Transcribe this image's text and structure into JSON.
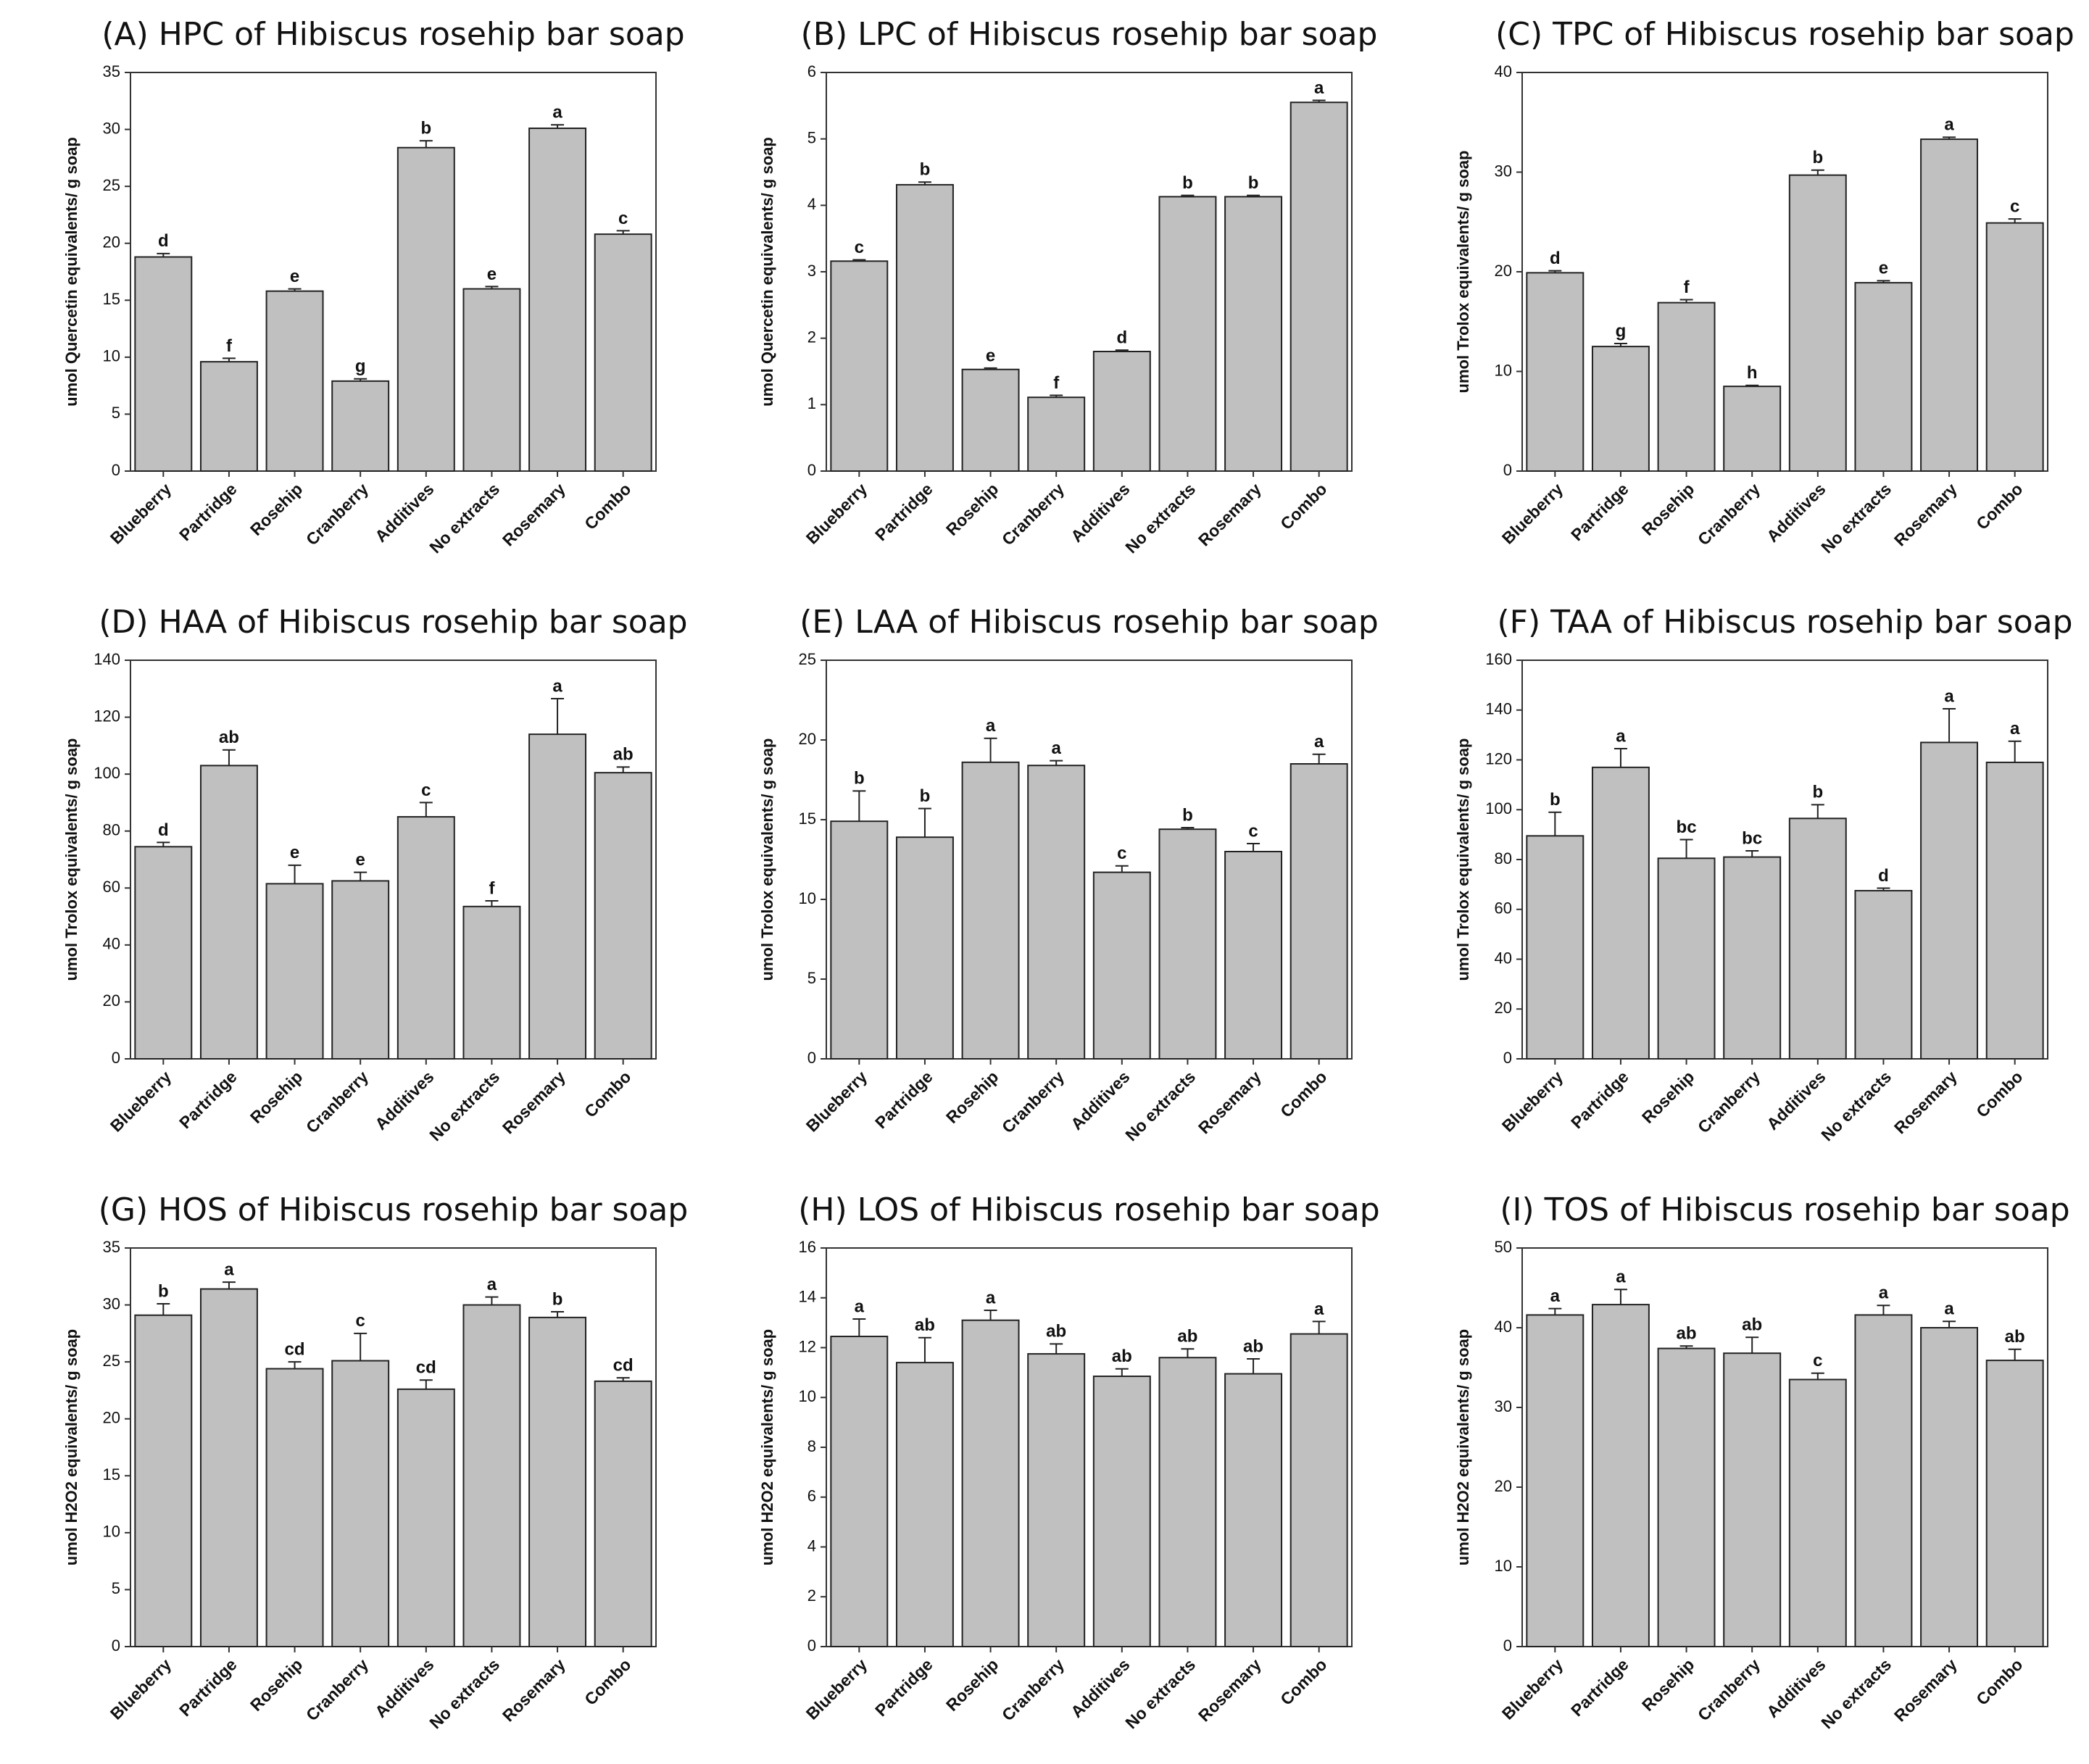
{
  "chart_data": [
    {
      "type": "bar",
      "title": "(A) HPC of Hibiscus rosehip bar soap",
      "ylabel": "umol Quercetin equivalents/ g soap",
      "categories": [
        "Blueberry",
        "Partridge",
        "Rosehip",
        "Cranberry",
        "Additives",
        "No extracts",
        "Rosemary",
        "Combo"
      ],
      "values": [
        18.8,
        9.6,
        15.8,
        7.9,
        28.4,
        16.0,
        30.1,
        20.8
      ],
      "errors": [
        0.3,
        0.3,
        0.2,
        0.2,
        0.6,
        0.2,
        0.3,
        0.3
      ],
      "annotations": [
        "d",
        "f",
        "e",
        "g",
        "b",
        "e",
        "a",
        "c"
      ],
      "color": "#c0c0c0",
      "ylim": [
        0,
        35
      ],
      "yticks": [
        0,
        5,
        10,
        15,
        20,
        25,
        30,
        35
      ]
    },
    {
      "type": "bar",
      "title": "(B) LPC of Hibiscus rosehip bar soap",
      "ylabel": "umol Quercetin equivalents/ g soap",
      "categories": [
        "Blueberry",
        "Partridge",
        "Rosehip",
        "Cranberry",
        "Additives",
        "No extracts",
        "Rosemary",
        "Combo"
      ],
      "values": [
        3.16,
        4.31,
        1.53,
        1.11,
        1.8,
        4.13,
        4.13,
        5.55
      ],
      "errors": [
        0.02,
        0.04,
        0.02,
        0.03,
        0.02,
        0.02,
        0.02,
        0.03
      ],
      "annotations": [
        "c",
        "b",
        "e",
        "f",
        "d",
        "b",
        "b",
        "a"
      ],
      "color": "#c0c0c0",
      "ylim": [
        0,
        6
      ],
      "yticks": [
        0,
        1,
        2,
        3,
        4,
        5,
        6
      ]
    },
    {
      "type": "bar",
      "title": "(C) TPC of Hibiscus rosehip bar soap",
      "ylabel": "umol Trolox equivalents/ g soap",
      "categories": [
        "Blueberry",
        "Partridge",
        "Rosehip",
        "Cranberry",
        "Additives",
        "No extracts",
        "Rosemary",
        "Combo"
      ],
      "values": [
        19.9,
        12.5,
        16.9,
        8.5,
        29.7,
        18.9,
        33.3,
        24.9
      ],
      "errors": [
        0.2,
        0.3,
        0.3,
        0.1,
        0.5,
        0.2,
        0.2,
        0.4
      ],
      "annotations": [
        "d",
        "g",
        "f",
        "h",
        "b",
        "e",
        "a",
        "c"
      ],
      "color": "#c0c0c0",
      "ylim": [
        0,
        40
      ],
      "yticks": [
        0,
        10,
        20,
        30,
        40
      ]
    },
    {
      "type": "bar",
      "title": "(D) HAA of Hibiscus rosehip bar soap",
      "ylabel": "umol Trolox equivalents/ g soap",
      "categories": [
        "Blueberry",
        "Partridge",
        "Rosehip",
        "Cranberry",
        "Additives",
        "No extracts",
        "Rosemary",
        "Combo"
      ],
      "values": [
        74.5,
        103,
        61.5,
        62.5,
        85,
        53.5,
        114,
        100.5
      ],
      "errors": [
        1.5,
        5.5,
        6.5,
        3,
        5,
        2,
        12.5,
        2
      ],
      "annotations": [
        "d",
        "ab",
        "e",
        "e",
        "c",
        "f",
        "a",
        "ab"
      ],
      "color": "#c0c0c0",
      "ylim": [
        0,
        140
      ],
      "yticks": [
        0,
        20,
        40,
        60,
        80,
        100,
        120,
        140
      ]
    },
    {
      "type": "bar",
      "title": "(E) LAA of Hibiscus rosehip bar soap",
      "ylabel": "umol Trolox equivalents/ g soap",
      "categories": [
        "Blueberry",
        "Partridge",
        "Rosehip",
        "Cranberry",
        "Additives",
        "No extracts",
        "Rosemary",
        "Combo"
      ],
      "values": [
        14.9,
        13.9,
        18.6,
        18.4,
        11.7,
        14.4,
        13.0,
        18.5
      ],
      "errors": [
        1.9,
        1.8,
        1.5,
        0.3,
        0.4,
        0.1,
        0.5,
        0.6
      ],
      "annotations": [
        "b",
        "b",
        "a",
        "a",
        "c",
        "b",
        "c",
        "a"
      ],
      "color": "#c0c0c0",
      "ylim": [
        0,
        25
      ],
      "yticks": [
        0,
        5,
        10,
        15,
        20,
        25
      ]
    },
    {
      "type": "bar",
      "title": "(F) TAA of Hibiscus rosehip bar soap",
      "ylabel": "umol Trolox equivalents/ g soap",
      "categories": [
        "Blueberry",
        "Partridge",
        "Rosehip",
        "Cranberry",
        "Additives",
        "No extracts",
        "Rosemary",
        "Combo"
      ],
      "values": [
        89.5,
        117,
        80.5,
        81,
        96.5,
        67.5,
        127,
        119
      ],
      "errors": [
        9.5,
        7.5,
        7.5,
        2.5,
        5.5,
        1,
        13.5,
        8.5
      ],
      "annotations": [
        "b",
        "a",
        "bc",
        "bc",
        "b",
        "d",
        "a",
        "a"
      ],
      "color": "#c0c0c0",
      "ylim": [
        0,
        160
      ],
      "yticks": [
        0,
        20,
        40,
        60,
        80,
        100,
        120,
        140,
        160
      ]
    },
    {
      "type": "bar",
      "title": "(G) HOS of Hibiscus rosehip bar soap",
      "ylabel": "umol H2O2 equivalents/ g soap",
      "categories": [
        "Blueberry",
        "Partridge",
        "Rosehip",
        "Cranberry",
        "Additives",
        "No extracts",
        "Rosemary",
        "Combo"
      ],
      "values": [
        29.1,
        31.4,
        24.4,
        25.1,
        22.6,
        30.0,
        28.9,
        23.3
      ],
      "errors": [
        1.0,
        0.6,
        0.6,
        2.4,
        0.8,
        0.7,
        0.5,
        0.3
      ],
      "annotations": [
        "b",
        "a",
        "cd",
        "c",
        "cd",
        "a",
        "b",
        "cd"
      ],
      "color": "#c0c0c0",
      "ylim": [
        0,
        35
      ],
      "yticks": [
        0,
        5,
        10,
        15,
        20,
        25,
        30,
        35
      ]
    },
    {
      "type": "bar",
      "title": "(H) LOS of Hibiscus rosehip bar soap",
      "ylabel": "umol H2O2 equivalents/ g soap",
      "categories": [
        "Blueberry",
        "Partridge",
        "Rosehip",
        "Cranberry",
        "Additives",
        "No extracts",
        "Rosemary",
        "Combo"
      ],
      "values": [
        12.45,
        11.4,
        13.1,
        11.75,
        10.85,
        11.6,
        10.95,
        12.55
      ],
      "errors": [
        0.7,
        1.0,
        0.4,
        0.4,
        0.3,
        0.35,
        0.6,
        0.5
      ],
      "annotations": [
        "a",
        "ab",
        "a",
        "ab",
        "ab",
        "ab",
        "ab",
        "a"
      ],
      "color": "#c0c0c0",
      "ylim": [
        0,
        16
      ],
      "yticks": [
        0,
        2,
        4,
        6,
        8,
        10,
        12,
        14,
        16
      ]
    },
    {
      "type": "bar",
      "title": "(I) TOS of Hibiscus rosehip bar soap",
      "ylabel": "umol H2O2 equivalents/ g soap",
      "categories": [
        "Blueberry",
        "Partridge",
        "Rosehip",
        "Cranberry",
        "Additives",
        "No extracts",
        "Rosemary",
        "Combo"
      ],
      "values": [
        41.6,
        42.9,
        37.4,
        36.8,
        33.5,
        41.6,
        40.0,
        35.9
      ],
      "errors": [
        0.8,
        1.9,
        0.3,
        2.0,
        0.8,
        1.2,
        0.8,
        1.4
      ],
      "annotations": [
        "a",
        "a",
        "ab",
        "ab",
        "c",
        "a",
        "a",
        "ab"
      ],
      "color": "#c0c0c0",
      "ylim": [
        0,
        50
      ],
      "yticks": [
        0,
        10,
        20,
        30,
        40,
        50
      ]
    }
  ]
}
